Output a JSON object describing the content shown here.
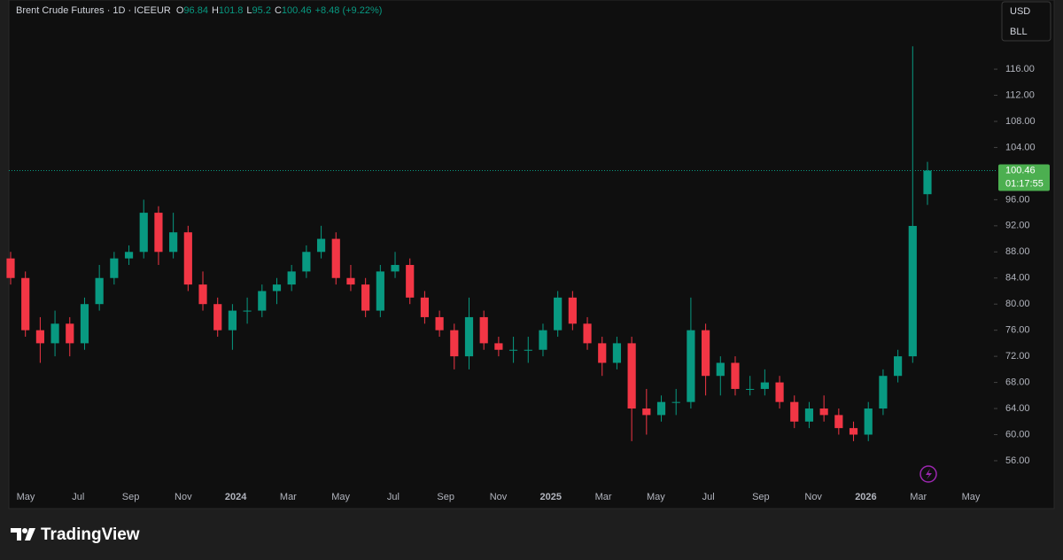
{
  "header": {
    "symbol": "Brent Crude Futures · 1D · ICEEUR",
    "ohlc_labels": [
      "O",
      "H",
      "L",
      "C"
    ],
    "change": "+8.48 (+9.22%)"
  },
  "currency": "USD",
  "unit": "BLL",
  "countdown": "01:17:55",
  "brand": "TradingView",
  "chart_data": {
    "type": "candlestick",
    "xtick_labels": [
      "May",
      "Jul",
      "Sep",
      "Nov",
      "2024",
      "Mar",
      "May",
      "Jul",
      "Sep",
      "Nov",
      "2025",
      "Mar",
      "May",
      "Jul",
      "Sep",
      "Nov",
      "2026",
      "Mar",
      "May"
    ],
    "open": [
      87,
      84,
      76,
      74,
      77,
      74,
      80,
      84,
      87,
      88,
      94,
      88,
      91,
      83,
      80,
      76,
      79,
      79,
      82,
      83,
      85,
      88,
      90,
      84,
      83,
      79,
      85,
      86,
      81,
      78,
      76,
      72,
      78,
      74,
      73,
      73,
      73,
      76,
      81,
      77,
      74,
      71,
      74,
      64,
      63,
      65,
      65,
      76,
      69,
      71,
      67,
      67,
      68,
      65,
      62,
      64,
      63,
      61,
      60,
      64,
      69,
      72,
      96.84
    ],
    "high": [
      88,
      85,
      78,
      79,
      78,
      81,
      86,
      88,
      89,
      96,
      95,
      94,
      92,
      85,
      81,
      80,
      81,
      83,
      84,
      86,
      89,
      92,
      91,
      86,
      84,
      86,
      88,
      87,
      82,
      79,
      77,
      81,
      79,
      75,
      75,
      75,
      77,
      82,
      82,
      78,
      75,
      75,
      75,
      67,
      66,
      67,
      81,
      77,
      72,
      72,
      69,
      70,
      69,
      66,
      65,
      66,
      64,
      62,
      65,
      70,
      73,
      119.5,
      101.8
    ],
    "low": [
      83,
      75,
      71,
      72,
      72,
      73,
      79,
      83,
      86,
      87,
      86,
      87,
      82,
      79,
      75,
      73,
      77,
      78,
      80,
      82,
      84,
      87,
      83,
      82,
      78,
      78,
      84,
      80,
      77,
      75,
      70,
      70,
      73,
      72,
      71,
      71,
      72,
      75,
      76,
      73,
      69,
      70,
      59,
      60,
      62,
      63,
      64,
      66,
      66,
      66,
      66,
      66,
      64,
      61,
      61,
      62,
      60,
      59,
      59,
      63,
      68,
      71,
      95.2
    ],
    "close": [
      84,
      76,
      74,
      77,
      74,
      80,
      84,
      87,
      88,
      94,
      88,
      91,
      83,
      80,
      76,
      79,
      79,
      82,
      83,
      85,
      88,
      90,
      84,
      83,
      79,
      85,
      86,
      81,
      78,
      76,
      72,
      78,
      74,
      73,
      73,
      73,
      76,
      81,
      77,
      74,
      71,
      74,
      64,
      63,
      65,
      65,
      76,
      69,
      71,
      67,
      67,
      68,
      65,
      62,
      64,
      63,
      61,
      60,
      64,
      69,
      72,
      91.98,
      100.46
    ],
    "up_color": "#089981",
    "down_color": "#f23645",
    "ylim": [
      52.6,
      126.6
    ],
    "yticks": [
      {
        "value": 56,
        "label": "56.00"
      },
      {
        "value": 60,
        "label": "60.00"
      },
      {
        "value": 64,
        "label": "64.00"
      },
      {
        "value": 68,
        "label": "68.00"
      },
      {
        "value": 72,
        "label": "72.00"
      },
      {
        "value": 76,
        "label": "76.00"
      },
      {
        "value": 80,
        "label": "80.00"
      },
      {
        "value": 84,
        "label": "84.00"
      },
      {
        "value": 88,
        "label": "88.00"
      },
      {
        "value": 92,
        "label": "92.00"
      },
      {
        "value": 96,
        "label": "96.00"
      },
      {
        "value": 104,
        "label": "104.00"
      },
      {
        "value": 108,
        "label": "108.00"
      },
      {
        "value": 112,
        "label": "112.00"
      },
      {
        "value": 116,
        "label": "116.00"
      }
    ],
    "grid": false
  }
}
